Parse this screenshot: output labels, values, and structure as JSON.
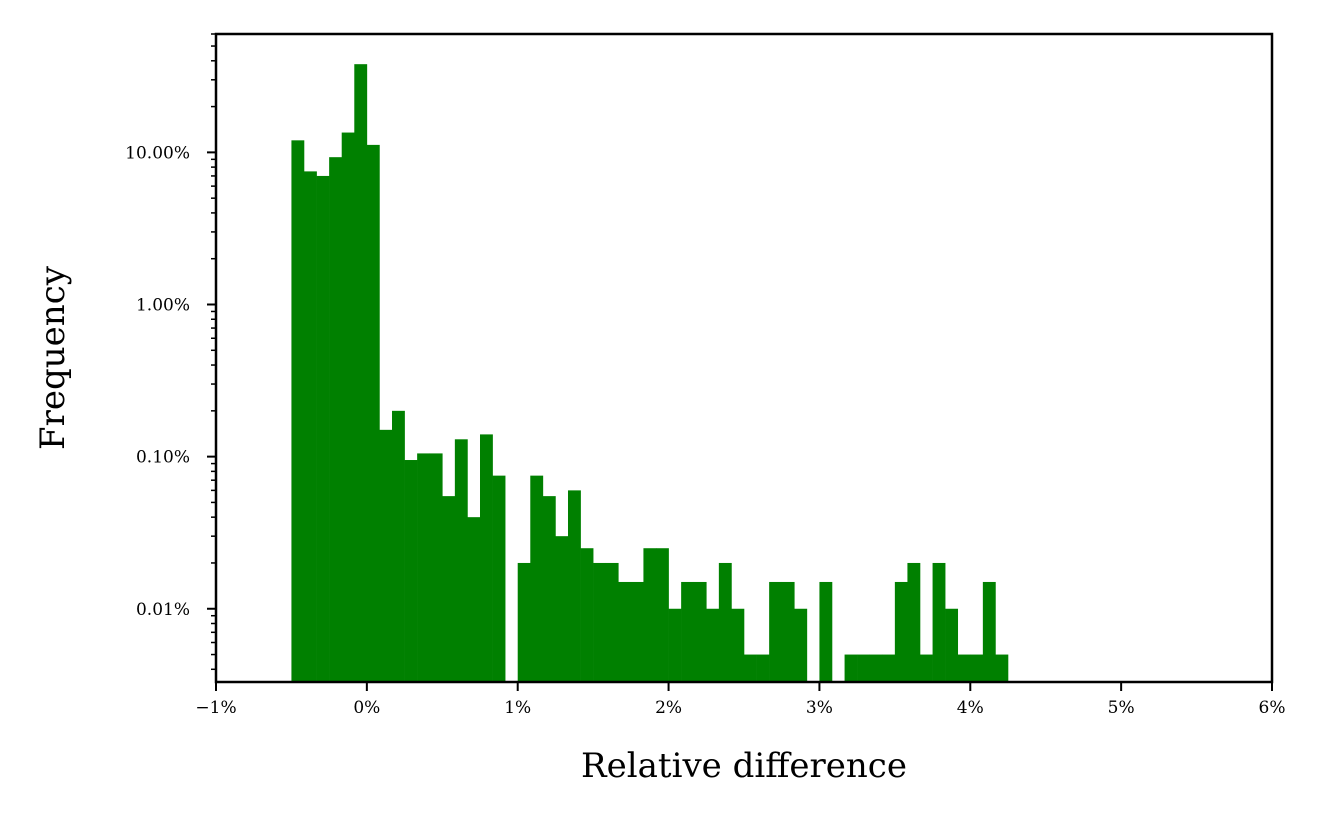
{
  "chart_data": {
    "type": "bar",
    "xlabel": "Relative difference",
    "ylabel": "Frequency",
    "xlim": [
      -1,
      6
    ],
    "ylim": [
      0.0033,
      60
    ],
    "y_scale": "log",
    "x_ticks": [
      -1,
      0,
      1,
      2,
      3,
      4,
      5,
      6
    ],
    "x_tick_labels": [
      "−1%",
      "0%",
      "1%",
      "2%",
      "3%",
      "4%",
      "5%",
      "6%"
    ],
    "y_ticks": [
      0.01,
      0.1,
      1,
      10
    ],
    "y_tick_labels": [
      "0.01%",
      "0.10%",
      "1.00%",
      "10.00%"
    ],
    "bar_color": "#008000",
    "grid": false,
    "bin_edges": [
      -0.5,
      -0.4167,
      -0.3333,
      -0.25,
      -0.1667,
      -0.0833,
      0.0,
      0.0833,
      0.1667,
      0.25,
      0.3333,
      0.4167,
      0.5,
      0.5833,
      0.6667,
      0.75,
      0.8333,
      0.9167,
      1.0,
      1.0833,
      1.1667,
      1.25,
      1.3333,
      1.4167,
      1.5,
      1.5833,
      1.6667,
      1.75,
      1.8333,
      1.9167,
      2.0,
      2.0833,
      2.1667,
      2.25,
      2.3333,
      2.4167,
      2.5,
      2.5833,
      2.6667,
      2.75,
      2.8333,
      2.9167,
      3.0,
      3.0833,
      3.1667,
      3.25,
      3.3333,
      3.4167,
      3.5,
      3.5833,
      3.6667,
      3.75,
      3.8333,
      3.9167,
      4.0,
      4.0833,
      4.1667,
      4.25,
      4.3333
    ],
    "values": [
      12,
      7.5,
      7,
      9.3,
      13.5,
      38,
      11.2,
      0.15,
      0.2,
      0.095,
      0.105,
      0.105,
      0.055,
      0.13,
      0.04,
      0.14,
      0.075,
      0,
      0.02,
      0.075,
      0.055,
      0.03,
      0.06,
      0.025,
      0.02,
      0.02,
      0.015,
      0.015,
      0.025,
      0.025,
      0.01,
      0.015,
      0.015,
      0.01,
      0.02,
      0.01,
      0.005,
      0.005,
      0.015,
      0.015,
      0.01,
      0,
      0.015,
      0,
      0.005,
      0.005,
      0.005,
      0.005,
      0.015,
      0.02,
      0.005,
      0.02,
      0.01,
      0.005,
      0.005,
      0.015,
      0.005,
      0,
      0
    ]
  }
}
